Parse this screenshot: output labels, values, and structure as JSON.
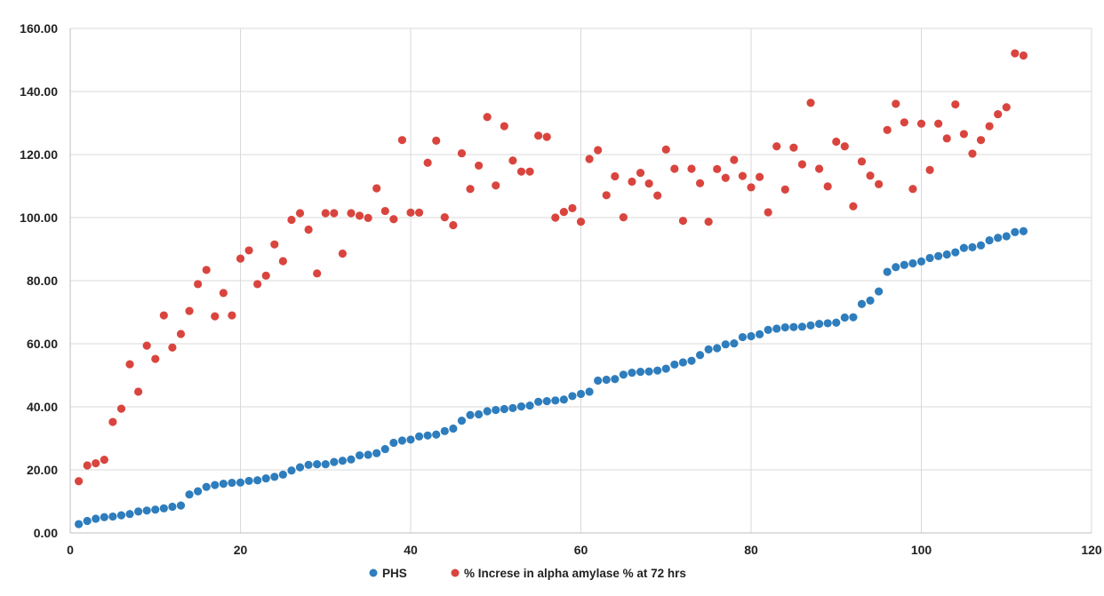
{
  "chart_data": {
    "type": "scatter",
    "title": "",
    "xlabel": "",
    "ylabel": "",
    "xlim": [
      0,
      120
    ],
    "ylim": [
      0,
      160
    ],
    "xticks": [
      0,
      20,
      40,
      60,
      80,
      100,
      120
    ],
    "yticks": [
      0,
      20,
      40,
      60,
      80,
      100,
      120,
      140,
      160
    ],
    "xtick_labels": [
      "0",
      "20",
      "40",
      "60",
      "80",
      "100",
      "120"
    ],
    "ytick_labels": [
      "0.00",
      "20.00",
      "40.00",
      "60.00",
      "80.00",
      "100.00",
      "120.00",
      "140.00",
      "160.00"
    ],
    "grid": true,
    "legend_position": "bottom",
    "x": [
      1,
      2,
      3,
      4,
      5,
      6,
      7,
      8,
      9,
      10,
      11,
      12,
      13,
      14,
      15,
      16,
      17,
      18,
      19,
      20,
      21,
      22,
      23,
      24,
      25,
      26,
      27,
      28,
      29,
      30,
      31,
      32,
      33,
      34,
      35,
      36,
      37,
      38,
      39,
      40,
      41,
      42,
      43,
      44,
      45,
      46,
      47,
      48,
      49,
      50,
      51,
      52,
      53,
      54,
      55,
      56,
      57,
      58,
      59,
      60,
      61,
      62,
      63,
      64,
      65,
      66,
      67,
      68,
      69,
      70,
      71,
      72,
      73,
      74,
      75,
      76,
      77,
      78,
      79,
      80,
      81,
      82,
      83,
      84,
      85,
      86,
      87,
      88,
      89,
      90,
      91,
      92,
      93,
      94,
      95,
      96,
      97,
      98,
      99,
      100,
      101,
      102,
      103,
      104,
      105,
      106,
      107,
      108,
      109,
      110,
      111,
      112
    ],
    "series": [
      {
        "name": "PHS",
        "color": "#2e7dbd",
        "values": [
          2.8,
          3.8,
          4.5,
          5.0,
          5.2,
          5.6,
          6.0,
          6.8,
          7.1,
          7.4,
          7.8,
          8.3,
          8.7,
          12.2,
          13.2,
          14.6,
          15.2,
          15.6,
          15.9,
          16.0,
          16.5,
          16.7,
          17.3,
          17.8,
          18.5,
          19.8,
          20.8,
          21.6,
          21.8,
          21.8,
          22.5,
          22.9,
          23.3,
          24.6,
          24.8,
          25.3,
          26.6,
          28.6,
          29.3,
          29.6,
          30.6,
          30.9,
          31.2,
          32.3,
          33.1,
          35.6,
          37.4,
          37.6,
          38.6,
          39.0,
          39.3,
          39.6,
          40.1,
          40.4,
          41.6,
          41.8,
          42.0,
          42.3,
          43.4,
          44.1,
          44.8,
          48.3,
          48.6,
          48.8,
          50.2,
          50.8,
          51.1,
          51.2,
          51.5,
          52.1,
          53.4,
          54.1,
          54.6,
          56.4,
          58.2,
          58.6,
          59.8,
          60.1,
          62.1,
          62.4,
          63.0,
          64.4,
          64.8,
          65.2,
          65.3,
          65.4,
          65.8,
          66.3,
          66.5,
          66.7,
          68.3,
          68.4,
          72.6,
          73.7,
          76.6,
          82.8,
          84.3,
          85.0,
          85.5,
          86.1,
          87.2,
          87.8,
          88.3,
          89.0,
          90.4,
          90.6,
          91.2,
          92.8,
          93.6,
          94.1,
          95.4,
          95.7
        ]
      },
      {
        "name": "% Increse in  alpha amylase % at 72 hrs",
        "color": "#d9453e",
        "values": [
          16.4,
          21.4,
          22.1,
          23.2,
          35.2,
          39.4,
          53.5,
          44.8,
          59.4,
          55.2,
          69.0,
          58.8,
          63.1,
          70.4,
          78.9,
          83.4,
          68.7,
          76.1,
          69.0,
          87.0,
          89.6,
          78.9,
          81.6,
          91.5,
          86.2,
          99.3,
          101.4,
          96.2,
          82.3,
          101.4,
          101.4,
          88.6,
          101.4,
          100.6,
          99.9,
          109.3,
          102.1,
          99.5,
          124.6,
          101.6,
          101.6,
          117.4,
          124.4,
          100.1,
          97.6,
          120.4,
          109.1,
          116.5,
          131.9,
          110.2,
          129.0,
          118.1,
          114.6,
          114.6,
          126.0,
          125.6,
          100.0,
          101.8,
          103.0,
          98.7,
          118.6,
          121.4,
          107.1,
          113.1,
          100.1,
          111.4,
          114.2,
          110.8,
          107.0,
          121.6,
          115.5,
          99.0,
          115.5,
          110.9,
          98.7,
          115.4,
          112.6,
          118.3,
          113.2,
          109.6,
          112.9,
          101.7,
          122.6,
          108.9,
          122.2,
          116.9,
          136.4,
          115.5,
          109.9,
          124.1,
          122.6,
          103.6,
          117.8,
          113.3,
          110.6,
          127.8,
          136.1,
          130.2,
          109.1,
          129.8,
          115.1,
          129.8,
          125.1,
          135.9,
          126.5,
          120.3,
          124.6,
          129.0,
          132.8,
          135.0,
          152.1,
          151.4
        ]
      }
    ],
    "legend": [
      {
        "label": "PHS",
        "color": "#2e7dbd"
      },
      {
        "label": "% Increse in  alpha amylase % at 72 hrs",
        "color": "#d9453e"
      }
    ]
  }
}
